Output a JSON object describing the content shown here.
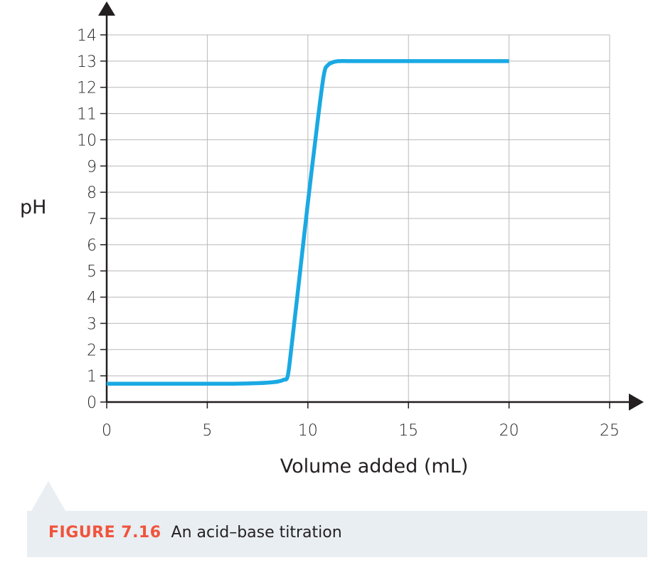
{
  "chart_data": {
    "type": "line",
    "xlabel": "Volume added (mL)",
    "ylabel": "pH",
    "xlim": [
      0,
      25
    ],
    "ylim": [
      0,
      14
    ],
    "x_ticks": [
      0,
      5,
      10,
      15,
      20,
      25
    ],
    "y_ticks": [
      0,
      1,
      2,
      3,
      4,
      5,
      6,
      7,
      8,
      9,
      10,
      11,
      12,
      13,
      14
    ],
    "grid": true,
    "series": [
      {
        "color": "#1aa9e3",
        "x": [
          0,
          2,
          4,
          6,
          7,
          8,
          8.5,
          8.8,
          9.0,
          9.2,
          9.5,
          10.0,
          10.5,
          10.8,
          11.0,
          11.3,
          11.6,
          12,
          14,
          16,
          18,
          20
        ],
        "y": [
          0.7,
          0.7,
          0.7,
          0.7,
          0.71,
          0.74,
          0.78,
          0.85,
          1.0,
          2.2,
          4.2,
          7.6,
          10.8,
          12.5,
          12.85,
          12.97,
          13.0,
          13.0,
          13.0,
          13.0,
          13.0,
          13.0
        ]
      }
    ]
  },
  "caption": {
    "figure_label": "FIGURE 7.16",
    "text": "An acid–base titration"
  }
}
